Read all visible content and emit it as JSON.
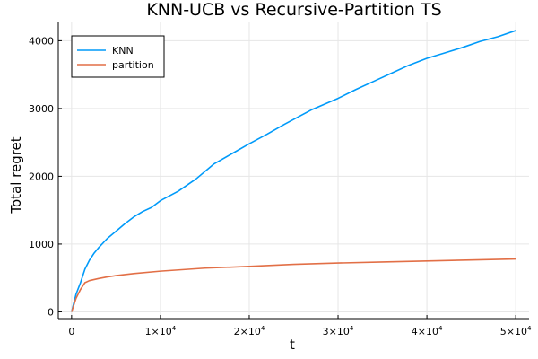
{
  "chart_data": {
    "type": "line",
    "title": "KNN-UCB vs Recursive-Partition TS",
    "xlabel": "t",
    "ylabel": "Total regret",
    "xlim": [
      -1500,
      51500
    ],
    "ylim": [
      -100,
      4270
    ],
    "grid": true,
    "legend_position": "top-left",
    "x_ticks": [
      {
        "value": 0,
        "base": "0",
        "exp": ""
      },
      {
        "value": 10000,
        "base": "1×10",
        "exp": "4"
      },
      {
        "value": 20000,
        "base": "2×10",
        "exp": "4"
      },
      {
        "value": 30000,
        "base": "3×10",
        "exp": "4"
      },
      {
        "value": 40000,
        "base": "4×10",
        "exp": "4"
      },
      {
        "value": 50000,
        "base": "5×10",
        "exp": "4"
      }
    ],
    "y_ticks": [
      0,
      1000,
      2000,
      3000,
      4000
    ],
    "series": [
      {
        "name": "KNN",
        "color": "#009af9",
        "x": [
          0,
          500,
          1000,
          1500,
          2000,
          2500,
          3000,
          4000,
          5000,
          6000,
          7000,
          8000,
          9000,
          10000,
          12000,
          14000,
          16000,
          18000,
          20000,
          22000,
          24000,
          26000,
          27000,
          30000,
          32000,
          34000,
          36000,
          38000,
          40000,
          42000,
          44000,
          46000,
          48000,
          50000
        ],
        "y": [
          0,
          260,
          430,
          630,
          760,
          860,
          940,
          1080,
          1190,
          1300,
          1400,
          1480,
          1540,
          1640,
          1780,
          1960,
          2180,
          2330,
          2480,
          2620,
          2770,
          2910,
          2980,
          3150,
          3280,
          3400,
          3520,
          3640,
          3740,
          3820,
          3900,
          3990,
          4060,
          4150
        ]
      },
      {
        "name": "partition",
        "color": "#e26f46",
        "x": [
          0,
          500,
          1000,
          1500,
          2000,
          3000,
          4000,
          5000,
          7000,
          10000,
          15000,
          20000,
          25000,
          30000,
          35000,
          40000,
          45000,
          50000
        ],
        "y": [
          0,
          200,
          330,
          430,
          460,
          490,
          515,
          535,
          565,
          600,
          645,
          670,
          700,
          720,
          735,
          750,
          765,
          780
        ]
      }
    ]
  }
}
